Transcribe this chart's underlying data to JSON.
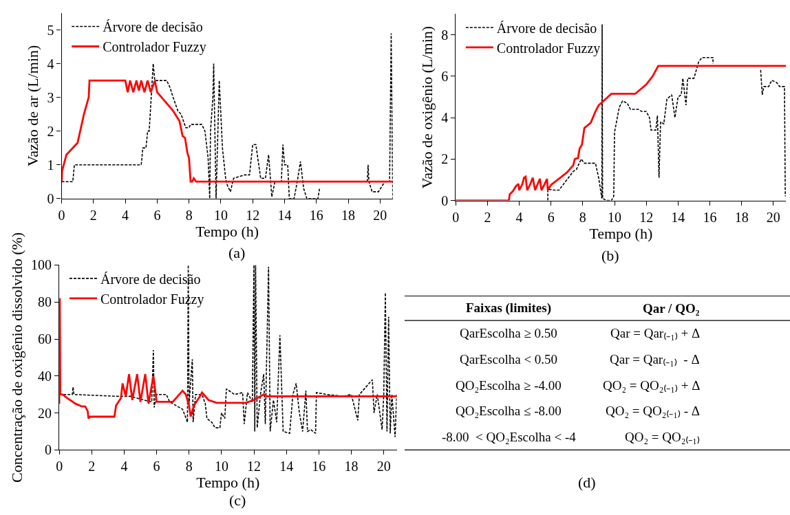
{
  "chart_data": [
    {
      "type": "line",
      "xlabel": "Tempo (h)",
      "ylabel": "Vazão de ar (L/min)",
      "annotations": [
        "(a)"
      ],
      "xlim": [
        0,
        20.8
      ],
      "xticks": [
        0,
        2,
        4,
        6,
        8,
        10,
        12,
        14,
        16,
        18,
        20
      ],
      "ylim": [
        0,
        5.5
      ],
      "yticks": [
        0,
        1,
        2,
        3,
        4,
        5
      ],
      "legend": "top left",
      "marker": "none",
      "series": [
        {
          "name": "Árvore de decisão",
          "color": "#000000",
          "line_style": "dashed",
          "x": [
            0,
            0.7,
            0.8,
            5.0,
            5.1,
            5.3,
            5.4,
            5.5,
            5.6,
            5.75,
            5.85,
            6.6,
            6.8,
            7.0,
            7.3,
            7.5,
            7.8,
            8.0,
            8.1,
            8.8,
            9.0,
            9.2,
            9.3,
            9.35,
            9.5,
            9.55,
            9.7,
            9.9,
            10.1,
            10.3,
            10.4,
            10.6,
            10.8,
            11.5,
            11.8,
            12.0,
            12.2,
            12.5,
            12.8,
            13.0,
            13.2,
            13.4,
            13.8,
            13.9,
            14.0,
            14.2,
            14.3,
            14.6,
            14.8,
            15.0,
            15.2,
            15.4,
            16.1,
            16.2,
            17.0,
            19.2,
            19.25,
            19.3,
            19.5,
            19.9,
            20.3,
            20.6,
            20.7,
            20.8
          ],
          "values": [
            0.5,
            0.5,
            1.0,
            1.0,
            1.5,
            1.5,
            2.0,
            2.0,
            2.8,
            4.0,
            3.5,
            3.5,
            3.3,
            3.0,
            2.6,
            2.5,
            2.1,
            2.1,
            2.2,
            2.2,
            2.0,
            1.2,
            0,
            2.0,
            3.0,
            4.0,
            0,
            3.5,
            1.5,
            0.6,
            0.4,
            0.2,
            0.6,
            0.7,
            0.7,
            1.6,
            1.6,
            0.6,
            0.6,
            1.3,
            0.05,
            0.5,
            0.5,
            1.6,
            1.0,
            1.0,
            0,
            0,
            0.5,
            1.1,
            0.3,
            0,
            0,
            0.3,
            null,
            0.5,
            1.0,
            0.5,
            0.2,
            0.2,
            0.5,
            0.5,
            4.9,
            0
          ]
        },
        {
          "name": "Controlador Fuzzy",
          "color": "#ff0000",
          "line_style": "solid",
          "x": [
            0,
            0.02,
            0.3,
            1.0,
            1.4,
            1.7,
            1.75,
            4.0,
            4.15,
            4.3,
            4.5,
            4.7,
            4.85,
            5.0,
            5.2,
            5.4,
            5.6,
            5.85,
            6.0,
            7.0,
            7.4,
            7.6,
            7.75,
            7.9,
            8.0,
            8.1,
            8.2,
            8.3,
            8.45,
            20.8
          ],
          "values": [
            0.5,
            0.8,
            1.3,
            1.65,
            2.5,
            3.0,
            3.5,
            3.5,
            3.15,
            3.5,
            3.15,
            3.5,
            3.2,
            3.5,
            3.15,
            3.5,
            3.15,
            3.5,
            3.15,
            2.6,
            2.3,
            1.85,
            1.8,
            1.35,
            1.2,
            0.5,
            0.5,
            0.6,
            0.5,
            0.5
          ]
        }
      ]
    },
    {
      "type": "line",
      "xlabel": "Tempo (h)",
      "ylabel": "Vazão de oxigênio (L/min)",
      "annotations": [
        "(b)"
      ],
      "xlim": [
        0,
        20.8
      ],
      "xticks": [
        0,
        2,
        4,
        6,
        8,
        10,
        12,
        14,
        16,
        18,
        20
      ],
      "ylim": [
        0,
        9
      ],
      "yticks": [
        0,
        2,
        4,
        6,
        8
      ],
      "legend": "top left",
      "marker": "none",
      "series": [
        {
          "name": "Árvore de decisão",
          "color": "#000000",
          "line_style": "dashed",
          "x": [
            5.8,
            5.8,
            6.2,
            6.5,
            6.8,
            7.4,
            7.6,
            7.9,
            8.1,
            8.8,
            9.0,
            9.2,
            9.22,
            9.25,
            9.5,
            9.8,
            9.95,
            10.0,
            10.3,
            10.5,
            10.8,
            11.0,
            11.5,
            11.7,
            12.0,
            12.2,
            12.3,
            12.6,
            12.7,
            12.8,
            12.9,
            13.1,
            13.3,
            13.6,
            13.8,
            14.0,
            14.2,
            14.3,
            14.5,
            14.6,
            15.0,
            15.3,
            15.5,
            16.2,
            16.2,
            17.0,
            19.2,
            19.3,
            19.4,
            19.7,
            19.9,
            20.2,
            20.4,
            20.7,
            20.75
          ],
          "values": [
            0,
            0.55,
            0.5,
            0.5,
            0.8,
            1.4,
            1.5,
            2.0,
            1.8,
            1.8,
            1.1,
            0.1,
            8.5,
            0.1,
            0,
            0,
            0.2,
            3.3,
            4.5,
            4.8,
            4.7,
            4.4,
            4.4,
            4.3,
            4.3,
            4.0,
            3.4,
            3.4,
            4.1,
            1.1,
            3.8,
            3.7,
            4.9,
            5.1,
            4.0,
            5.0,
            5.1,
            5.9,
            4.6,
            5.9,
            5.9,
            6.7,
            6.9,
            6.9,
            6.6,
            null,
            6.3,
            5.1,
            5.5,
            5.5,
            5.8,
            5.7,
            5.5,
            5.5,
            0.2
          ]
        },
        {
          "name": "Controlador Fuzzy",
          "color": "#ff0000",
          "line_style": "solid",
          "x": [
            0,
            3.35,
            3.4,
            3.6,
            3.8,
            3.95,
            4.0,
            4.2,
            4.3,
            4.4,
            4.5,
            4.7,
            4.85,
            5.0,
            5.3,
            5.4,
            5.6,
            5.75,
            5.8,
            6.0,
            7.0,
            7.4,
            7.5,
            7.7,
            7.8,
            7.95,
            8.1,
            8.5,
            8.8,
            9.0,
            9.3,
            9.8,
            11.3,
            12.0,
            12.4,
            12.75,
            20.8
          ],
          "values": [
            0,
            0,
            0.3,
            0.45,
            0.7,
            0.8,
            0.5,
            0.8,
            1.1,
            1.15,
            0.5,
            0.8,
            1.1,
            0.5,
            1.05,
            0.5,
            0.8,
            1.05,
            0.5,
            0.75,
            1.35,
            1.7,
            2.0,
            2.05,
            2.5,
            2.7,
            3.5,
            3.75,
            4.3,
            4.6,
            4.8,
            5.15,
            5.15,
            5.6,
            6.0,
            6.5,
            6.5
          ]
        }
      ]
    },
    {
      "type": "line",
      "xlabel": "Tempo (h)",
      "ylabel": "Concentração de oxigênio dissolvido (%)",
      "annotations": [
        "(c)"
      ],
      "xlim": [
        0,
        20.8
      ],
      "xticks": [
        0,
        2,
        4,
        6,
        8,
        10,
        12,
        14,
        16,
        18,
        20
      ],
      "ylim": [
        0,
        100
      ],
      "yticks": [
        0,
        20,
        40,
        60,
        80,
        100
      ],
      "legend": "top left",
      "marker": "none",
      "series": [
        {
          "name": "Árvore de decisão",
          "color": "#000000",
          "line_style": "dashed",
          "x": [
            0,
            0.8,
            0.85,
            0.9,
            3.6,
            4.4,
            5.2,
            5.7,
            5.8,
            5.85,
            6.0,
            6.6,
            6.8,
            7.2,
            7.6,
            7.9,
            7.95,
            8.0,
            8.2,
            8.25,
            8.4,
            8.8,
            9.0,
            9.1,
            9.4,
            9.6,
            9.9,
            10.0,
            10.2,
            10.3,
            10.8,
            11.3,
            11.4,
            11.6,
            11.9,
            12.0,
            12.05,
            12.1,
            12.2,
            12.4,
            12.6,
            12.7,
            12.9,
            13.0,
            13.2,
            13.4,
            13.6,
            13.8,
            14.2,
            14.4,
            14.6,
            14.8,
            15.0,
            15.2,
            15.3,
            15.5,
            15.8,
            15.85,
            16.5,
            17.5,
            18.0,
            18.4,
            18.5,
            19.3,
            19.4,
            19.6,
            19.9,
            20.0,
            20.1,
            20.2,
            20.3,
            20.4,
            20.5,
            20.7,
            20.8
          ],
          "values": [
            30,
            30,
            34,
            30,
            29,
            29,
            27,
            26,
            54,
            23,
            30,
            30,
            26,
            24,
            22,
            15,
            100,
            25,
            49,
            15,
            30,
            30,
            25,
            17,
            15,
            12,
            12,
            20,
            17,
            33,
            30,
            31,
            14,
            31,
            26,
            100,
            10,
            100,
            12,
            30,
            41,
            14,
            99,
            10,
            27,
            15,
            62,
            10,
            9,
            30,
            36,
            20,
            10,
            32,
            10,
            11,
            9,
            31,
            30,
            29,
            30,
            16,
            30,
            38,
            20,
            30,
            11,
            30,
            85,
            10,
            72,
            9,
            30,
            7,
            30
          ]
        },
        {
          "name": "Controlador Fuzzy",
          "color": "#ff0000",
          "line_style": "solid",
          "x": [
            0,
            0.03,
            0.06,
            0.2,
            0.5,
            1.0,
            1.4,
            1.6,
            1.75,
            1.8,
            1.9,
            3.4,
            3.5,
            3.8,
            3.9,
            4.1,
            4.3,
            4.5,
            4.8,
            5.0,
            5.3,
            5.5,
            5.8,
            6.0,
            7.0,
            7.4,
            7.6,
            7.8,
            8.0,
            8.1,
            8.3,
            8.6,
            8.8,
            9.2,
            9.7,
            11.5,
            12.0,
            12.6,
            12.8,
            20.8
          ],
          "values": [
            25,
            82,
            30,
            30,
            28,
            25,
            23.5,
            23.5,
            21,
            17,
            18,
            18,
            24,
            28,
            36,
            29,
            41,
            27,
            41,
            26,
            41,
            25,
            40,
            26,
            26,
            30,
            32,
            30,
            24,
            18,
            24,
            28,
            31,
            27,
            25.5,
            25.5,
            27,
            30,
            29,
            29
          ]
        }
      ]
    },
    {
      "type": "other",
      "title": "(d)",
      "annotations": [
        "Faixas (limites)",
        "Qar / QO₂",
        "QarEscolha ≥ 0.50",
        "Qar = Qar₍₋₁₎ + Δ",
        "QarEscolha < 0.50",
        "Qar = Qar₍₋₁₎  - Δ",
        "QO₂Escolha ≥ -4.00",
        "QO₂ = QO₂₍₋₁₎ + Δ",
        "QO₂Escolha ≤ -8.00",
        "QO₂ = QO₂₍₋₁₎ - Δ",
        "-8.00  < QO₂Escolha < -4",
        "QO₂ = QO₂₍₋₁₎"
      ]
    }
  ]
}
